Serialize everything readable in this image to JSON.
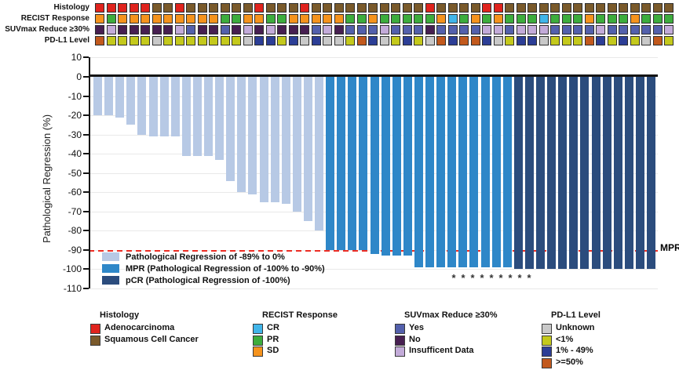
{
  "palette": {
    "bar_light": "#b7c9e5",
    "bar_mpr": "#2e87c8",
    "bar_pcr": "#2b4c7d",
    "mpr_line_color": "#ed2d24",
    "A": "#e0231d",
    "S": "#7a5a2b",
    "CR": "#41b5e9",
    "PR": "#3dad3d",
    "SD": "#f5931d",
    "Y": "#5360ac",
    "N": "#471f51",
    "I": "#c3abd9",
    "U": "#c9c9c9",
    "L": "#c4c91c",
    "M": "#2c3e96",
    "H": "#c2591d"
  },
  "tracks": {
    "rows": [
      {
        "label": "Histology",
        "key": "histology"
      },
      {
        "label": "RECIST Response",
        "key": "recist"
      },
      {
        "label": "SUVmax Reduce ≥30%",
        "key": "suvmax"
      },
      {
        "label": "PD-L1 Level",
        "key": "pdl1"
      }
    ],
    "histology": [
      "A",
      "A",
      "A",
      "A",
      "A",
      "S",
      "S",
      "A",
      "S",
      "S",
      "S",
      "S",
      "S",
      "S",
      "A",
      "S",
      "S",
      "S",
      "A",
      "S",
      "S",
      "S",
      "S",
      "S",
      "S",
      "S",
      "S",
      "S",
      "S",
      "A",
      "S",
      "S",
      "S",
      "S",
      "A",
      "A",
      "S",
      "S",
      "S",
      "S",
      "S",
      "S",
      "S",
      "S",
      "S",
      "S",
      "S",
      "S",
      "S",
      "S",
      "S"
    ],
    "recist": [
      "SD",
      "PR",
      "SD",
      "SD",
      "SD",
      "SD",
      "SD",
      "SD",
      "SD",
      "SD",
      "SD",
      "PR",
      "PR",
      "SD",
      "SD",
      "PR",
      "PR",
      "SD",
      "SD",
      "SD",
      "SD",
      "SD",
      "PR",
      "PR",
      "SD",
      "PR",
      "PR",
      "PR",
      "PR",
      "PR",
      "SD",
      "CR",
      "PR",
      "SD",
      "PR",
      "SD",
      "PR",
      "PR",
      "PR",
      "CR",
      "PR",
      "PR",
      "PR",
      "SD",
      "PR",
      "PR",
      "PR",
      "SD",
      "PR",
      "PR",
      "PR"
    ],
    "suvmax": [
      "N",
      "I",
      "N",
      "N",
      "N",
      "N",
      "N",
      "I",
      "Y",
      "N",
      "N",
      "Y",
      "N",
      "I",
      "N",
      "I",
      "N",
      "N",
      "N",
      "Y",
      "I",
      "N",
      "Y",
      "Y",
      "Y",
      "I",
      "Y",
      "Y",
      "Y",
      "N",
      "Y",
      "Y",
      "Y",
      "Y",
      "I",
      "I",
      "Y",
      "I",
      "I",
      "I",
      "Y",
      "Y",
      "Y",
      "Y",
      "I",
      "Y",
      "Y",
      "Y",
      "Y",
      "Y",
      "I"
    ],
    "pdl1": [
      "H",
      "L",
      "L",
      "L",
      "L",
      "U",
      "L",
      "L",
      "L",
      "L",
      "L",
      "L",
      "L",
      "U",
      "M",
      "M",
      "L",
      "M",
      "U",
      "M",
      "U",
      "U",
      "L",
      "H",
      "M",
      "U",
      "L",
      "M",
      "L",
      "U",
      "H",
      "M",
      "H",
      "H",
      "M",
      "U",
      "L",
      "M",
      "M",
      "U",
      "L",
      "L",
      "L",
      "H",
      "M",
      "L",
      "M",
      "L",
      "U",
      "H",
      "L"
    ]
  },
  "chart_data": {
    "type": "bar",
    "title": "",
    "xlabel": "",
    "ylabel": "Pathological Regression (%)",
    "ylim": [
      -110,
      10
    ],
    "yticks": [
      10,
      0,
      -10,
      -20,
      -30,
      -40,
      -50,
      -60,
      -70,
      -80,
      -90,
      -100,
      -110
    ],
    "grid": true,
    "mpr_threshold": -90,
    "mpr_label": "MPR",
    "values": [
      -20,
      -20,
      -21,
      -25,
      -30,
      -31,
      -31,
      -31,
      -41,
      -41,
      -41,
      -43,
      -54,
      -60,
      -61,
      -65,
      -65,
      -66,
      -70,
      -75,
      -80,
      -90,
      -90,
      -90,
      -90,
      -92,
      -93,
      -93,
      -93,
      -99,
      -99,
      -99,
      -99,
      -99,
      -99,
      -99,
      -99,
      -99,
      -100,
      -100,
      -100,
      -100,
      -100,
      -100,
      -100,
      -100,
      -100,
      -100,
      -100,
      -100,
      -100
    ],
    "groups": [
      "light",
      "light",
      "light",
      "light",
      "light",
      "light",
      "light",
      "light",
      "light",
      "light",
      "light",
      "light",
      "light",
      "light",
      "light",
      "light",
      "light",
      "light",
      "light",
      "light",
      "light",
      "mpr",
      "mpr",
      "mpr",
      "mpr",
      "mpr",
      "mpr",
      "mpr",
      "mpr",
      "mpr",
      "mpr",
      "mpr",
      "mpr",
      "mpr",
      "mpr",
      "mpr",
      "mpr",
      "mpr",
      "pcr",
      "pcr",
      "pcr",
      "pcr",
      "pcr",
      "pcr",
      "pcr",
      "pcr",
      "pcr",
      "pcr",
      "pcr",
      "pcr",
      "pcr"
    ],
    "asterisks": {
      "count": 9,
      "symbol": "*"
    }
  },
  "plot_legend": {
    "items": [
      {
        "key": "bar_light",
        "label": "Pathological Regression of -89% to 0%"
      },
      {
        "key": "bar_mpr",
        "label": "MPR (Pathological Regression of -100% to -90%)"
      },
      {
        "key": "bar_pcr",
        "label": "pCR (Pathological Regression of -100%)"
      }
    ]
  },
  "bottom_legend": [
    {
      "title": "Histology",
      "items": [
        {
          "key": "A",
          "label": "Adenocarcinoma"
        },
        {
          "key": "S",
          "label": "Squamous Cell Cancer"
        }
      ]
    },
    {
      "title": "RECIST Response",
      "items": [
        {
          "key": "CR",
          "label": "CR"
        },
        {
          "key": "PR",
          "label": "PR"
        },
        {
          "key": "SD",
          "label": "SD"
        }
      ]
    },
    {
      "title": "SUVmax Reduce ≥30%",
      "items": [
        {
          "key": "Y",
          "label": "Yes"
        },
        {
          "key": "N",
          "label": "No"
        },
        {
          "key": "I",
          "label": "Insufficent Data"
        }
      ]
    },
    {
      "title": "PD-L1 Level",
      "items": [
        {
          "key": "U",
          "label": "Unknown"
        },
        {
          "key": "L",
          "label": "<1%"
        },
        {
          "key": "M",
          "label": "1% - 49%"
        },
        {
          "key": "H",
          "label": ">=50%"
        }
      ]
    }
  ]
}
